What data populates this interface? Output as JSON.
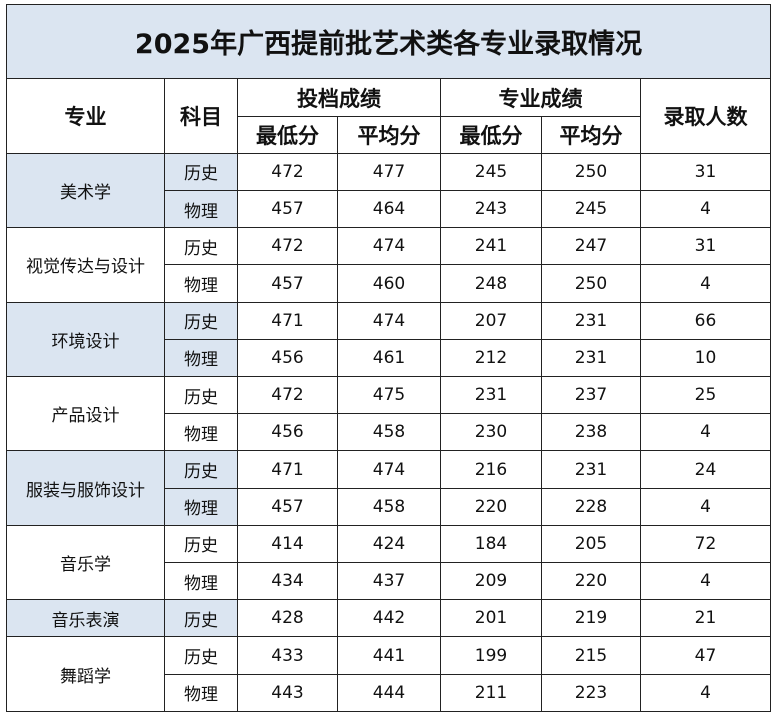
{
  "title": "2025年广西提前批艺术类各专业录取情况",
  "headers": {
    "major": "专业",
    "subject": "科目",
    "filing_scores": "投档成绩",
    "major_scores": "专业成绩",
    "admitted": "录取人数",
    "min": "最低分",
    "avg": "平均分"
  },
  "majors": [
    {
      "name": "美术学",
      "highlight": true,
      "rows": [
        {
          "subject": "历史",
          "filing_min": "472",
          "filing_avg": "477",
          "major_min": "245",
          "major_avg": "250",
          "admitted": "31"
        },
        {
          "subject": "物理",
          "filing_min": "457",
          "filing_avg": "464",
          "major_min": "243",
          "major_avg": "245",
          "admitted": "4"
        }
      ]
    },
    {
      "name": "视觉传达与设计",
      "highlight": false,
      "rows": [
        {
          "subject": "历史",
          "filing_min": "472",
          "filing_avg": "474",
          "major_min": "241",
          "major_avg": "247",
          "admitted": "31"
        },
        {
          "subject": "物理",
          "filing_min": "457",
          "filing_avg": "460",
          "major_min": "248",
          "major_avg": "250",
          "admitted": "4"
        }
      ]
    },
    {
      "name": "环境设计",
      "highlight": true,
      "rows": [
        {
          "subject": "历史",
          "filing_min": "471",
          "filing_avg": "474",
          "major_min": "207",
          "major_avg": "231",
          "admitted": "66"
        },
        {
          "subject": "物理",
          "filing_min": "456",
          "filing_avg": "461",
          "major_min": "212",
          "major_avg": "231",
          "admitted": "10"
        }
      ]
    },
    {
      "name": "产品设计",
      "highlight": false,
      "rows": [
        {
          "subject": "历史",
          "filing_min": "472",
          "filing_avg": "475",
          "major_min": "231",
          "major_avg": "237",
          "admitted": "25"
        },
        {
          "subject": "物理",
          "filing_min": "456",
          "filing_avg": "458",
          "major_min": "230",
          "major_avg": "238",
          "admitted": "4"
        }
      ]
    },
    {
      "name": "服装与服饰设计",
      "highlight": true,
      "rows": [
        {
          "subject": "历史",
          "filing_min": "471",
          "filing_avg": "474",
          "major_min": "216",
          "major_avg": "231",
          "admitted": "24"
        },
        {
          "subject": "物理",
          "filing_min": "457",
          "filing_avg": "458",
          "major_min": "220",
          "major_avg": "228",
          "admitted": "4"
        }
      ]
    },
    {
      "name": "音乐学",
      "highlight": false,
      "rows": [
        {
          "subject": "历史",
          "filing_min": "414",
          "filing_avg": "424",
          "major_min": "184",
          "major_avg": "205",
          "admitted": "72"
        },
        {
          "subject": "物理",
          "filing_min": "434",
          "filing_avg": "437",
          "major_min": "209",
          "major_avg": "220",
          "admitted": "4"
        }
      ]
    },
    {
      "name": "音乐表演",
      "highlight": true,
      "rows": [
        {
          "subject": "历史",
          "filing_min": "428",
          "filing_avg": "442",
          "major_min": "201",
          "major_avg": "219",
          "admitted": "21"
        }
      ]
    },
    {
      "name": "舞蹈学",
      "highlight": false,
      "rows": [
        {
          "subject": "历史",
          "filing_min": "433",
          "filing_avg": "441",
          "major_min": "199",
          "major_avg": "215",
          "admitted": "47"
        },
        {
          "subject": "物理",
          "filing_min": "443",
          "filing_avg": "444",
          "major_min": "211",
          "major_avg": "223",
          "admitted": "4"
        }
      ]
    }
  ]
}
